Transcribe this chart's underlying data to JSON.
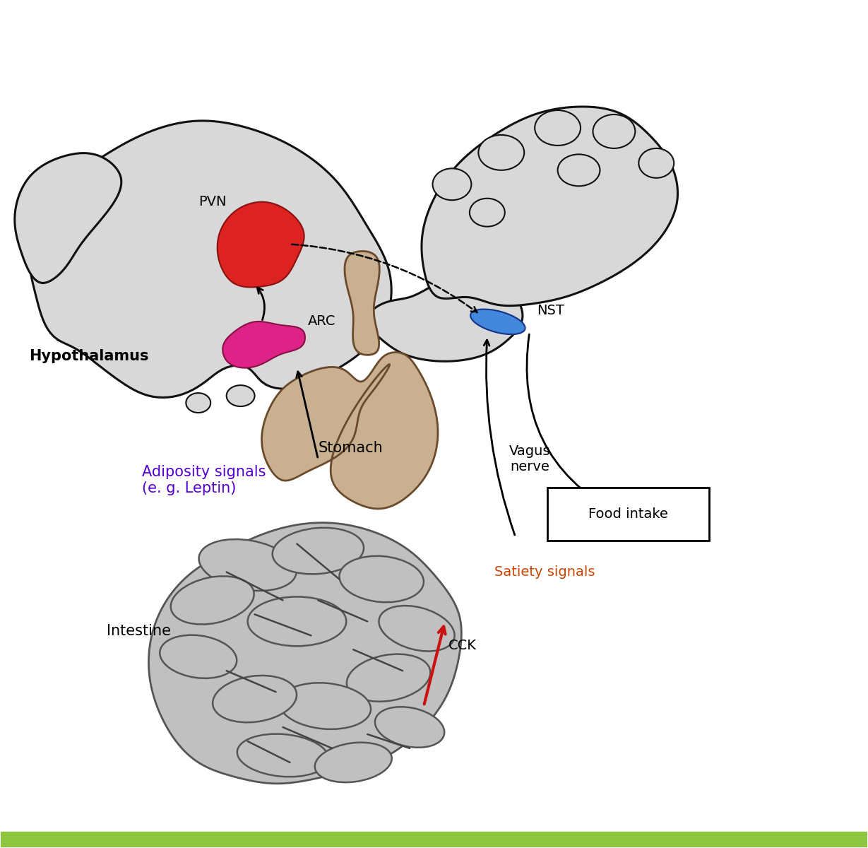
{
  "bg_color": "#ffffff",
  "bottom_bar_color": "#8dc63f",
  "brain_fill": "#d8d8d8",
  "brain_stroke": "#111111",
  "pvn_color": "#dd2222",
  "arc_color": "#dd2288",
  "nst_color": "#4488dd",
  "stomach_color": "#c8b090",
  "intestine_color": "#c0c0c0",
  "hypothalamus_label": "Hypothalamus",
  "pvn_label": "PVN",
  "arc_label": "ARC",
  "nst_label": "NST",
  "stomach_label": "Stomach",
  "intestine_label": "Intestine",
  "adiposity_label": "Adiposity signals\n(e. g. Leptin)",
  "vagus_label": "Vagus\nnerve",
  "food_intake_label": "Food intake",
  "satiety_label": "Satiety signals",
  "cck_label": "CCK",
  "adiposity_color": "#5500cc",
  "satiety_color": "#cc4400",
  "arrow_color": "#111111",
  "red_arrow_color": "#cc1111"
}
